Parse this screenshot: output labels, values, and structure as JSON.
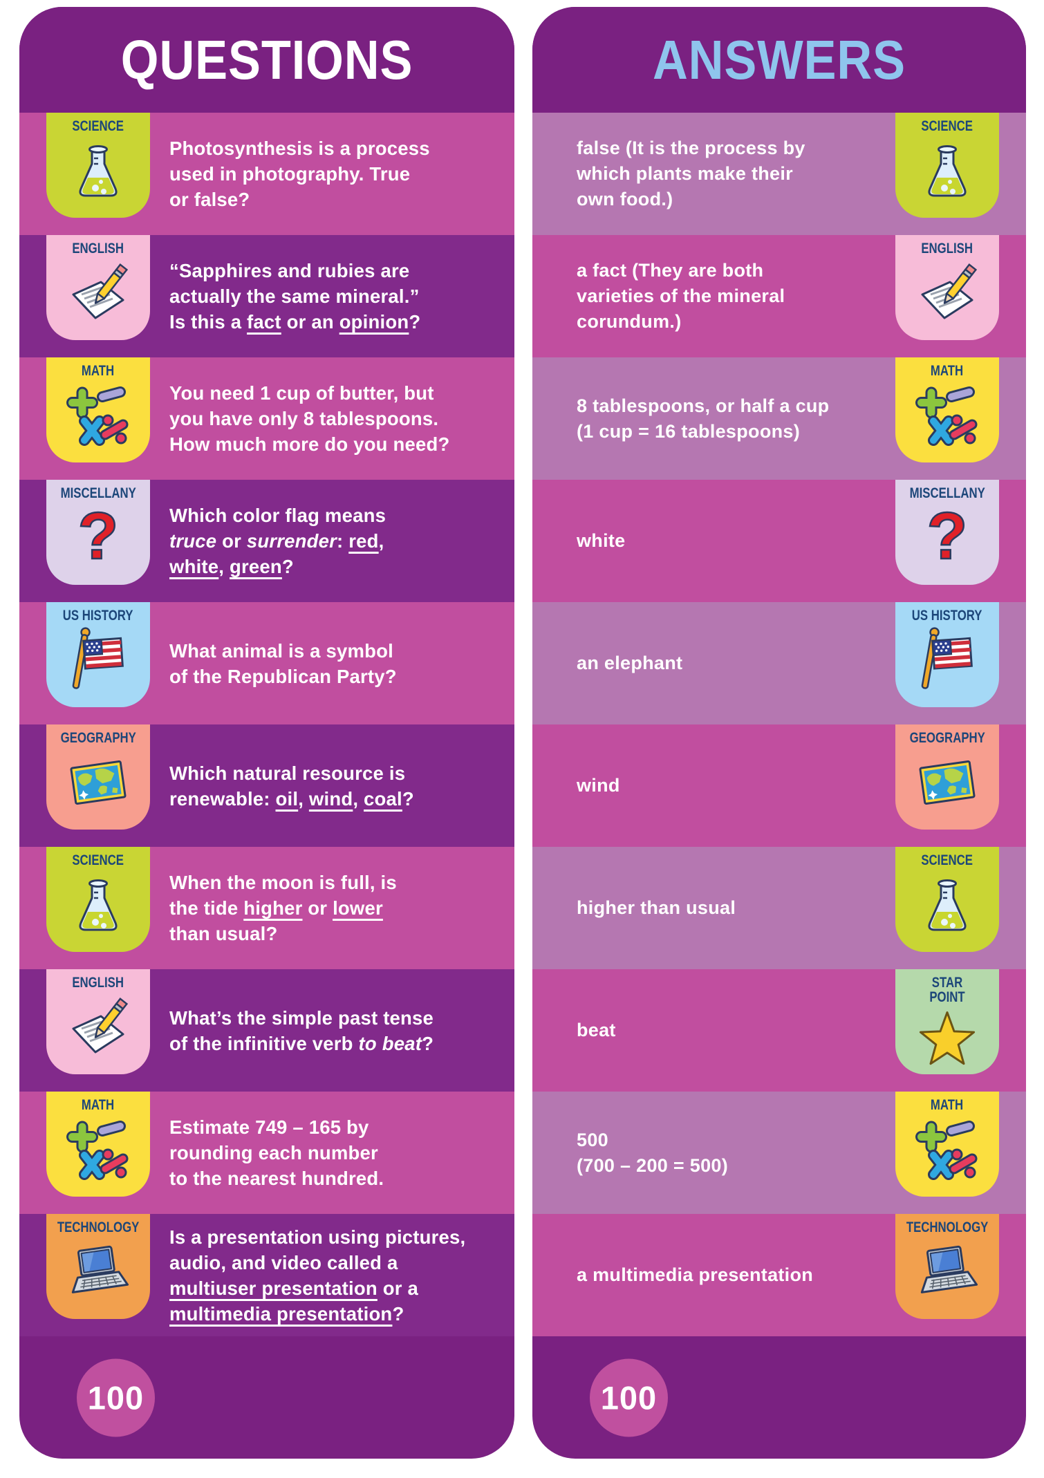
{
  "colors": {
    "page_bg": "#ffffff",
    "card_purple": "#7a2181",
    "row_purple": "#822a8b",
    "row_magenta": "#c14e9f",
    "row_mauve": "#b577b1",
    "badge_label": "#1c4679",
    "questions_title_color": "#ffffff",
    "answers_title_color": "#8fc5ed",
    "score_circle": "#c0509f",
    "body_text": "#ffffff"
  },
  "badges": {
    "science": {
      "label": "SCIENCE",
      "bg": "#c9d534",
      "icon": "flask-icon"
    },
    "english": {
      "label": "ENGLISH",
      "bg": "#f7bcd8",
      "icon": "paper-pencil-icon"
    },
    "math": {
      "label": "MATH",
      "bg": "#fbdf3f",
      "icon": "math-symbols-icon"
    },
    "miscellany": {
      "label": "MISCELLANY",
      "bg": "#ded2ea",
      "icon": "question-mark-icon"
    },
    "us_history": {
      "label": "US HISTORY",
      "bg": "#a5d9f6",
      "icon": "us-flag-icon"
    },
    "geography": {
      "label": "GEOGRAPHY",
      "bg": "#f79e8f",
      "icon": "world-map-icon"
    },
    "technology": {
      "label": "TECHNOLOGY",
      "bg": "#f2a04e",
      "icon": "laptop-icon"
    },
    "star_point": {
      "label": "STAR POINT",
      "bg": "#b5d9ab",
      "icon": "star-icon",
      "stacked": true
    }
  },
  "questions_card": {
    "title": "QUESTIONS",
    "score": "100",
    "rows": [
      {
        "category": "science",
        "lines": [
          [
            "Photosynthesis is a process"
          ],
          [
            "used in photography. True"
          ],
          [
            "or false?"
          ]
        ]
      },
      {
        "category": "english",
        "lines": [
          [
            "“Sapphires and rubies are"
          ],
          [
            "actually the same mineral.”"
          ],
          [
            "Is this a ",
            {
              "t": "fact",
              "u": true
            },
            " or an ",
            {
              "t": "opinion",
              "u": true
            },
            "?"
          ]
        ]
      },
      {
        "category": "math",
        "lines": [
          [
            "You need 1 cup of butter, but"
          ],
          [
            "you have only 8 tablespoons."
          ],
          [
            "How much more do you need?"
          ]
        ]
      },
      {
        "category": "miscellany",
        "lines": [
          [
            "Which color flag means"
          ],
          [
            {
              "t": "truce",
              "i": true
            },
            " or ",
            {
              "t": "surrender",
              "i": true
            },
            ": ",
            {
              "t": "red",
              "u": true
            },
            ","
          ],
          [
            {
              "t": "white",
              "u": true
            },
            ", ",
            {
              "t": "green",
              "u": true
            },
            "?"
          ]
        ]
      },
      {
        "category": "us_history",
        "lines": [
          [
            "What animal is a symbol"
          ],
          [
            "of the Republican Party?"
          ]
        ]
      },
      {
        "category": "geography",
        "lines": [
          [
            "Which natural resource is"
          ],
          [
            "renewable: ",
            {
              "t": "oil",
              "u": true
            },
            ", ",
            {
              "t": "wind",
              "u": true
            },
            ", ",
            {
              "t": "coal",
              "u": true
            },
            "?"
          ]
        ]
      },
      {
        "category": "science",
        "lines": [
          [
            "When the moon is full, is"
          ],
          [
            "the tide ",
            {
              "t": "higher",
              "u": true
            },
            " or ",
            {
              "t": "lower",
              "u": true
            }
          ],
          [
            "than usual?"
          ]
        ]
      },
      {
        "category": "english",
        "lines": [
          [
            "What’s the simple past tense"
          ],
          [
            "of the infinitive verb ",
            {
              "t": "to beat",
              "i": true
            },
            "?"
          ]
        ]
      },
      {
        "category": "math",
        "lines": [
          [
            "Estimate 749 – 165 by"
          ],
          [
            "rounding each number"
          ],
          [
            "to the nearest hundred."
          ]
        ]
      },
      {
        "category": "technology",
        "lines": [
          [
            "Is a presentation using pictures,"
          ],
          [
            "audio, and video called a"
          ],
          [
            {
              "t": "multiuser presentation",
              "u": true
            },
            " or a"
          ],
          [
            {
              "t": "multimedia presentation",
              "u": true
            },
            "?"
          ]
        ]
      }
    ]
  },
  "answers_card": {
    "title": "ANSWERS",
    "score": "100",
    "rows": [
      {
        "category": "science",
        "lines": [
          [
            "false (It is the process by"
          ],
          [
            "which plants make their"
          ],
          [
            "own food.)"
          ]
        ]
      },
      {
        "category": "english",
        "lines": [
          [
            "a fact (They are both"
          ],
          [
            "varieties of the mineral"
          ],
          [
            "corundum.)"
          ]
        ]
      },
      {
        "category": "math",
        "lines": [
          [
            "8 tablespoons, or half a cup"
          ],
          [
            "(1 cup = 16 tablespoons)"
          ]
        ]
      },
      {
        "category": "miscellany",
        "lines": [
          [
            "white"
          ]
        ]
      },
      {
        "category": "us_history",
        "lines": [
          [
            "an elephant"
          ]
        ]
      },
      {
        "category": "geography",
        "lines": [
          [
            "wind"
          ]
        ]
      },
      {
        "category": "science",
        "lines": [
          [
            "higher than usual"
          ]
        ]
      },
      {
        "category": "star_point",
        "lines": [
          [
            "beat"
          ]
        ]
      },
      {
        "category": "math",
        "lines": [
          [
            "500"
          ],
          [
            "(700 – 200 = 500)"
          ]
        ]
      },
      {
        "category": "technology",
        "lines": [
          [
            "a multimedia presentation"
          ]
        ]
      }
    ]
  }
}
